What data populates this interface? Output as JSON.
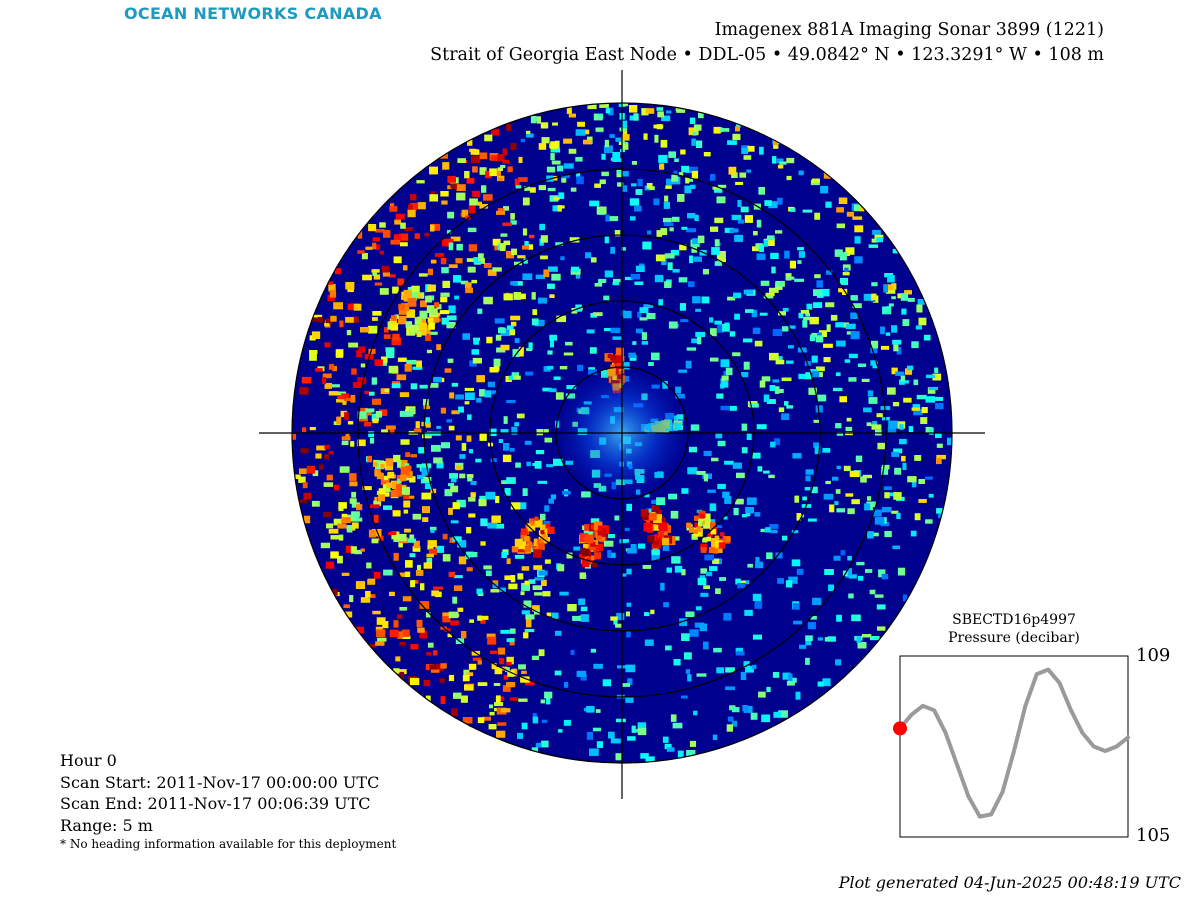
{
  "header": {
    "logo_text": "OCEAN NETWORKS CANADA",
    "title_line1": "Imagenex 881A Imaging Sonar 3899 (1221)",
    "title_line2": "Strait of Georgia East Node • DDL-05 • 49.0842° N • 123.3291° W • 108 m"
  },
  "info": {
    "hour": "Hour 0",
    "scan_start": "Scan Start: 2011-Nov-17 00:00:00 UTC",
    "scan_end": "Scan End: 2011-Nov-17 00:06:39 UTC",
    "range": "Range: 5 m",
    "note": "* No heading information available for this deployment"
  },
  "footer": {
    "generated": "Plot generated 04-Jun-2025 00:48:19 UTC"
  },
  "colors": {
    "sonar_background": "#00008f",
    "logo": "#1d9bbf",
    "pressure_line": "#9a9a9a",
    "current_marker": "#ff0000"
  },
  "chart_data": [
    {
      "type": "heatmap",
      "subtype": "polar-sonar",
      "range_m": 5,
      "range_rings": 5,
      "colormap": "jet",
      "bright_returns": [
        {
          "bearing_deg": 355,
          "range_frac": 0.19,
          "intensity": 1.0
        },
        {
          "bearing_deg": 80,
          "range_frac": 0.13,
          "intensity": 0.6
        },
        {
          "bearing_deg": 160,
          "range_frac": 0.3,
          "intensity": 1.0
        },
        {
          "bearing_deg": 195,
          "range_frac": 0.35,
          "intensity": 1.0
        },
        {
          "bearing_deg": 220,
          "range_frac": 0.42,
          "intensity": 0.95
        },
        {
          "bearing_deg": 140,
          "range_frac": 0.4,
          "intensity": 0.9
        },
        {
          "bearing_deg": 260,
          "range_frac": 0.7,
          "intensity": 0.8
        },
        {
          "bearing_deg": 300,
          "range_frac": 0.72,
          "intensity": 0.8
        }
      ]
    },
    {
      "type": "line",
      "title": "SBECTD16p4997",
      "subtitle": "Pressure (decibar)",
      "ylim": [
        105,
        109
      ],
      "yticks": [
        "109",
        "105"
      ],
      "x": [
        0,
        0.05,
        0.1,
        0.15,
        0.2,
        0.25,
        0.3,
        0.35,
        0.4,
        0.45,
        0.5,
        0.55,
        0.6,
        0.65,
        0.7,
        0.75,
        0.8,
        0.85,
        0.9,
        0.95,
        1.0
      ],
      "y": [
        107.4,
        107.7,
        107.9,
        107.8,
        107.3,
        106.6,
        105.9,
        105.45,
        105.5,
        106.0,
        106.9,
        107.9,
        108.6,
        108.7,
        108.4,
        107.8,
        107.3,
        107.0,
        106.9,
        107.0,
        107.2
      ],
      "current_index": 0
    }
  ]
}
